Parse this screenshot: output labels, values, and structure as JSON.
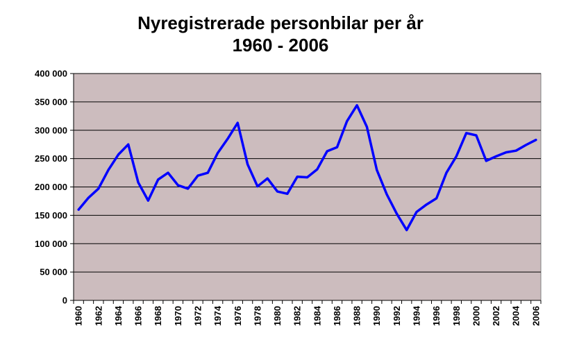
{
  "chart_data": {
    "type": "line",
    "title_line1": "Nyregistrerade personbilar per år",
    "title_line2": "1960 - 2006",
    "xlabel": "",
    "ylabel": "",
    "ylim": [
      0,
      400000
    ],
    "y_ticks": [
      "0",
      "50 000",
      "100 000",
      "150 000",
      "200 000",
      "250 000",
      "300 000",
      "350 000",
      "400 000"
    ],
    "x_tick_labels": [
      "1960",
      "1962",
      "1964",
      "1966",
      "1968",
      "1970",
      "1972",
      "1974",
      "1976",
      "1978",
      "1980",
      "1982",
      "1984",
      "1986",
      "1988",
      "1990",
      "1992",
      "1994",
      "1996",
      "1998",
      "2000",
      "2002",
      "2004",
      "2006"
    ],
    "grid": "horizontal",
    "legend": "none",
    "plot_background": "#CCBCBE",
    "line_color": "#0000FF",
    "series": [
      {
        "x": [
          1960,
          1961,
          1962,
          1963,
          1964,
          1965,
          1966,
          1967,
          1968,
          1969,
          1970,
          1971,
          1972,
          1973,
          1974,
          1975,
          1976,
          1977,
          1978,
          1979,
          1980,
          1981,
          1982,
          1983,
          1984,
          1985,
          1986,
          1987,
          1988,
          1989,
          1990,
          1991,
          1992,
          1993,
          1994,
          1995,
          1996,
          1997,
          1998,
          1999,
          2000,
          2001,
          2002,
          2003,
          2004,
          2005,
          2006
        ],
        "values": [
          160000,
          181000,
          197000,
          230000,
          257000,
          275000,
          208000,
          176000,
          213000,
          225000,
          203000,
          197000,
          220000,
          225000,
          260000,
          285000,
          313000,
          240000,
          201000,
          215000,
          192000,
          188000,
          218000,
          217000,
          231000,
          263000,
          270000,
          316000,
          344000,
          306000,
          230000,
          187000,
          153000,
          124000,
          156000,
          169000,
          180000,
          225000,
          254000,
          295000,
          291000,
          246000,
          254000,
          261000,
          264000,
          274000,
          283000
        ]
      }
    ]
  }
}
